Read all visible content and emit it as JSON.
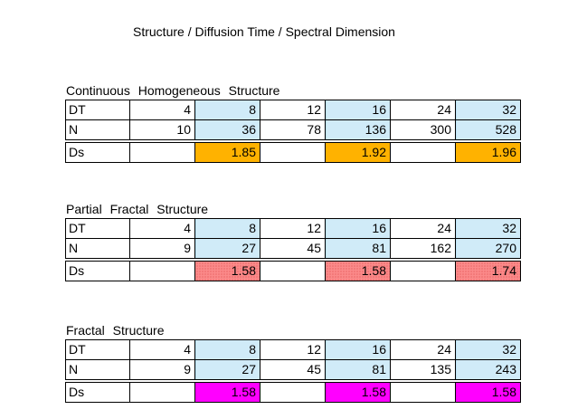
{
  "title": "Structure / Diffusion Time / Spectral Dimension",
  "colors": {
    "text": "#000000",
    "grid-border": "#000000",
    "blue-a": "#b9e1f5",
    "blue-b": "#e8f5fc",
    "orange-a": "#ffcc00",
    "orange-b": "#ff9900",
    "salmon-base": "#fb8a8a",
    "salmon-dot": "#e05252",
    "magenta": "#ff00ff"
  },
  "sections": [
    {
      "heading": "Continuous Homogeneous Structure",
      "labels": {
        "dt": "DT",
        "n": "N",
        "ds": "Ds"
      },
      "dt": [
        "4",
        "8",
        "12",
        "16",
        "24",
        "32"
      ],
      "n": [
        "10",
        "36",
        "78",
        "136",
        "300",
        "528"
      ],
      "ds": [
        "",
        "1.85",
        "",
        "1.92",
        "",
        "1.96"
      ]
    },
    {
      "heading": "Partial Fractal Structure",
      "labels": {
        "dt": "DT",
        "n": "N",
        "ds": "Ds"
      },
      "dt": [
        "4",
        "8",
        "12",
        "16",
        "24",
        "32"
      ],
      "n": [
        "9",
        "27",
        "45",
        "81",
        "162",
        "270"
      ],
      "ds": [
        "",
        "1.58",
        "",
        "1.58",
        "",
        "1.74"
      ]
    },
    {
      "heading": "Fractal Structure",
      "labels": {
        "dt": "DT",
        "n": "N",
        "ds": "Ds"
      },
      "dt": [
        "4",
        "8",
        "12",
        "16",
        "24",
        "32"
      ],
      "n": [
        "9",
        "27",
        "45",
        "81",
        "135",
        "243"
      ],
      "ds": [
        "",
        "1.58",
        "",
        "1.58",
        "",
        "1.58"
      ]
    }
  ]
}
